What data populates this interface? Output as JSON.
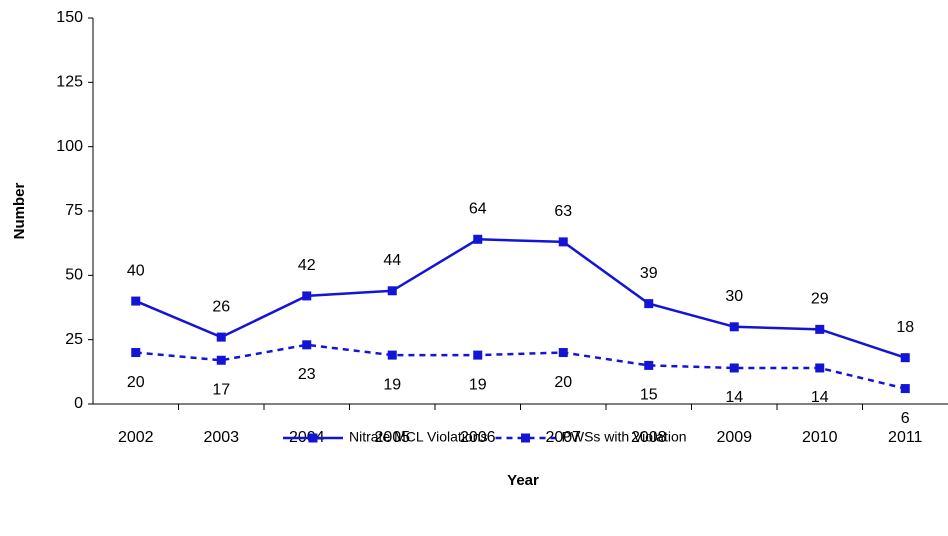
{
  "chart_data": {
    "type": "line",
    "x_label": "Year",
    "y_label": "Number",
    "categories": [
      "2002",
      "2003",
      "2004",
      "2005",
      "2006",
      "2007",
      "2008",
      "2009",
      "2010",
      "2011"
    ],
    "series": [
      {
        "name": "Nitrate MCL Violations",
        "color": "#1414d6",
        "dash": false,
        "label_position": "above",
        "values": [
          40,
          26,
          42,
          44,
          64,
          63,
          39,
          30,
          29,
          18
        ]
      },
      {
        "name": "PWSs with Violation",
        "color": "#1414d6",
        "dash": true,
        "label_position": "below",
        "values": [
          20,
          17,
          23,
          19,
          19,
          20,
          15,
          14,
          14,
          6
        ]
      }
    ],
    "ylim": [
      0,
      150
    ],
    "yticks": [
      0,
      25,
      50,
      75,
      100,
      125,
      150
    ],
    "grid": false,
    "legend": "bottom"
  }
}
